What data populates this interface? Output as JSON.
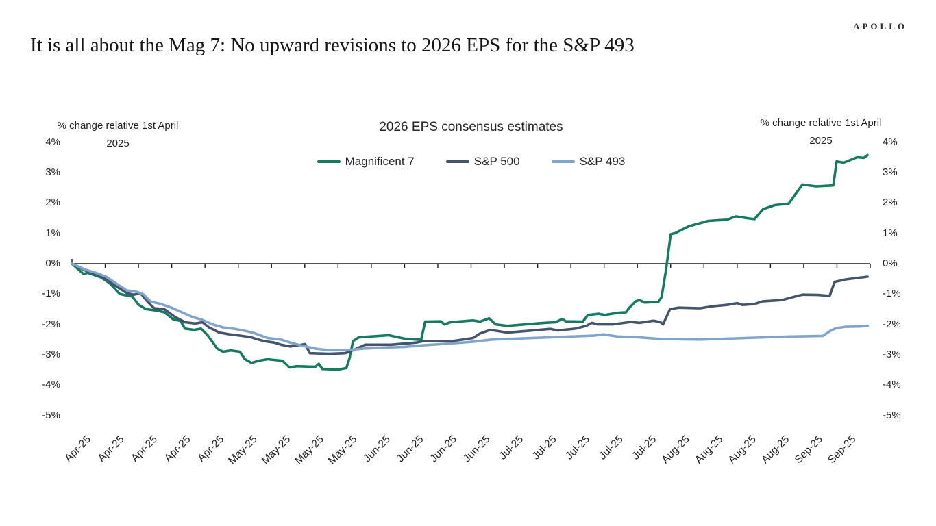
{
  "brand": "APOLLO",
  "title": "It is all about the Mag 7: No upward revisions to 2026 EPS for the S&P 493",
  "chart_data": {
    "type": "line",
    "title": "2026 EPS consensus estimates",
    "axis_label_left": [
      "% change relative 1st April",
      "2025"
    ],
    "axis_label_right": [
      "% change relative 1st April",
      "2025"
    ],
    "ylim": [
      -5,
      4
    ],
    "grid": false,
    "legend_position": "top-center",
    "yticks": [
      {
        "value": 4,
        "label": "4%"
      },
      {
        "value": 3,
        "label": "3%"
      },
      {
        "value": 2,
        "label": "2%"
      },
      {
        "value": 1,
        "label": "1%"
      },
      {
        "value": 0,
        "label": "0%"
      },
      {
        "value": -1,
        "label": "-1%"
      },
      {
        "value": -2,
        "label": "-2%"
      },
      {
        "value": -3,
        "label": "-3%"
      },
      {
        "value": -4,
        "label": "-4%"
      },
      {
        "value": -5,
        "label": "-5%"
      }
    ],
    "x_unit": "weeks since 1 Apr 2025",
    "x_range": [
      0,
      24
    ],
    "categories": [
      "Apr-25",
      "Apr-25",
      "Apr-25",
      "Apr-25",
      "Apr-25",
      "May-25",
      "May-25",
      "May-25",
      "May-25",
      "Jun-25",
      "Jun-25",
      "Jun-25",
      "Jun-25",
      "Jul-25",
      "Jul-25",
      "Jul-25",
      "Jul-25",
      "Jul-25",
      "Aug-25",
      "Aug-25",
      "Aug-25",
      "Aug-25",
      "Sep-25",
      "Sep-25"
    ],
    "series": [
      {
        "name": "Magnificent 7",
        "color": "#147a60",
        "points": [
          [
            0,
            0
          ],
          [
            0.35,
            -0.34
          ],
          [
            0.47,
            -0.3
          ],
          [
            0.87,
            -0.45
          ],
          [
            1.13,
            -0.64
          ],
          [
            1.44,
            -1.0
          ],
          [
            1.65,
            -1.05
          ],
          [
            1.81,
            -1.08
          ],
          [
            2.0,
            -1.35
          ],
          [
            2.23,
            -1.5
          ],
          [
            2.58,
            -1.55
          ],
          [
            2.78,
            -1.6
          ],
          [
            3.05,
            -1.84
          ],
          [
            3.26,
            -1.88
          ],
          [
            3.4,
            -2.14
          ],
          [
            3.67,
            -2.18
          ],
          [
            3.88,
            -2.14
          ],
          [
            4.08,
            -2.36
          ],
          [
            4.37,
            -2.8
          ],
          [
            4.54,
            -2.9
          ],
          [
            4.78,
            -2.86
          ],
          [
            5.05,
            -2.9
          ],
          [
            5.2,
            -3.15
          ],
          [
            5.4,
            -3.27
          ],
          [
            5.61,
            -3.2
          ],
          [
            5.88,
            -3.15
          ],
          [
            6.33,
            -3.2
          ],
          [
            6.54,
            -3.42
          ],
          [
            6.76,
            -3.38
          ],
          [
            7.32,
            -3.4
          ],
          [
            7.42,
            -3.3
          ],
          [
            7.53,
            -3.47
          ],
          [
            8.0,
            -3.49
          ],
          [
            8.25,
            -3.44
          ],
          [
            8.35,
            -3.1
          ],
          [
            8.45,
            -2.55
          ],
          [
            8.62,
            -2.43
          ],
          [
            8.97,
            -2.4
          ],
          [
            9.53,
            -2.36
          ],
          [
            9.69,
            -2.4
          ],
          [
            10.0,
            -2.47
          ],
          [
            10.37,
            -2.5
          ],
          [
            10.5,
            -2.5
          ],
          [
            10.62,
            -1.91
          ],
          [
            11.09,
            -1.9
          ],
          [
            11.2,
            -2.0
          ],
          [
            11.38,
            -1.93
          ],
          [
            11.71,
            -1.9
          ],
          [
            12.06,
            -1.87
          ],
          [
            12.27,
            -1.91
          ],
          [
            12.54,
            -1.8
          ],
          [
            12.74,
            -2.0
          ],
          [
            13.09,
            -2.05
          ],
          [
            13.65,
            -2.0
          ],
          [
            14.19,
            -1.95
          ],
          [
            14.54,
            -1.93
          ],
          [
            14.74,
            -1.82
          ],
          [
            14.85,
            -1.9
          ],
          [
            15.36,
            -1.91
          ],
          [
            15.51,
            -1.69
          ],
          [
            15.84,
            -1.65
          ],
          [
            16.02,
            -1.69
          ],
          [
            16.39,
            -1.62
          ],
          [
            16.66,
            -1.6
          ],
          [
            16.74,
            -1.47
          ],
          [
            16.95,
            -1.24
          ],
          [
            17.07,
            -1.2
          ],
          [
            17.22,
            -1.28
          ],
          [
            17.63,
            -1.26
          ],
          [
            17.73,
            -1.1
          ],
          [
            17.86,
            -0.2
          ],
          [
            18.0,
            0.97
          ],
          [
            18.14,
            1.01
          ],
          [
            18.39,
            1.15
          ],
          [
            18.56,
            1.24
          ],
          [
            18.8,
            1.31
          ],
          [
            19.13,
            1.41
          ],
          [
            19.69,
            1.45
          ],
          [
            19.96,
            1.56
          ],
          [
            20.31,
            1.5
          ],
          [
            20.52,
            1.47
          ],
          [
            20.78,
            1.8
          ],
          [
            21.13,
            1.93
          ],
          [
            21.55,
            1.98
          ],
          [
            21.69,
            2.2
          ],
          [
            21.96,
            2.61
          ],
          [
            22.37,
            2.55
          ],
          [
            22.89,
            2.58
          ],
          [
            22.99,
            3.37
          ],
          [
            23.2,
            3.33
          ],
          [
            23.61,
            3.51
          ],
          [
            23.81,
            3.49
          ],
          [
            23.92,
            3.58
          ]
        ]
      },
      {
        "name": "S&P 500",
        "color": "#44546a",
        "points": [
          [
            0,
            0
          ],
          [
            0.41,
            -0.23
          ],
          [
            0.72,
            -0.34
          ],
          [
            1.03,
            -0.52
          ],
          [
            1.34,
            -0.75
          ],
          [
            1.65,
            -0.97
          ],
          [
            1.86,
            -1.02
          ],
          [
            2.06,
            -0.97
          ],
          [
            2.27,
            -1.25
          ],
          [
            2.47,
            -1.47
          ],
          [
            2.78,
            -1.5
          ],
          [
            3.09,
            -1.75
          ],
          [
            3.4,
            -1.93
          ],
          [
            3.71,
            -1.97
          ],
          [
            3.92,
            -1.93
          ],
          [
            4.12,
            -2.1
          ],
          [
            4.43,
            -2.27
          ],
          [
            4.74,
            -2.33
          ],
          [
            5.05,
            -2.37
          ],
          [
            5.36,
            -2.42
          ],
          [
            5.77,
            -2.55
          ],
          [
            6.08,
            -2.6
          ],
          [
            6.29,
            -2.67
          ],
          [
            6.56,
            -2.73
          ],
          [
            6.76,
            -2.7
          ],
          [
            7.01,
            -2.65
          ],
          [
            7.08,
            -2.8
          ],
          [
            7.15,
            -2.95
          ],
          [
            7.73,
            -2.97
          ],
          [
            8.21,
            -2.95
          ],
          [
            8.35,
            -2.9
          ],
          [
            8.82,
            -2.67
          ],
          [
            9.59,
            -2.67
          ],
          [
            10.35,
            -2.6
          ],
          [
            10.56,
            -2.55
          ],
          [
            11.44,
            -2.55
          ],
          [
            12.06,
            -2.45
          ],
          [
            12.27,
            -2.3
          ],
          [
            12.58,
            -2.18
          ],
          [
            13.09,
            -2.27
          ],
          [
            13.65,
            -2.22
          ],
          [
            14.39,
            -2.15
          ],
          [
            14.6,
            -2.2
          ],
          [
            15.15,
            -2.14
          ],
          [
            15.46,
            -2.05
          ],
          [
            15.63,
            -1.95
          ],
          [
            15.81,
            -2.0
          ],
          [
            16.25,
            -2.0
          ],
          [
            16.8,
            -1.92
          ],
          [
            17.07,
            -1.95
          ],
          [
            17.48,
            -1.88
          ],
          [
            17.69,
            -1.92
          ],
          [
            17.77,
            -2.0
          ],
          [
            17.98,
            -1.5
          ],
          [
            18.25,
            -1.45
          ],
          [
            18.87,
            -1.47
          ],
          [
            19.28,
            -1.4
          ],
          [
            19.69,
            -1.36
          ],
          [
            20.0,
            -1.3
          ],
          [
            20.16,
            -1.36
          ],
          [
            20.52,
            -1.33
          ],
          [
            20.78,
            -1.24
          ],
          [
            21.34,
            -1.2
          ],
          [
            21.75,
            -1.08
          ],
          [
            21.96,
            -1.02
          ],
          [
            22.43,
            -1.03
          ],
          [
            22.78,
            -1.06
          ],
          [
            22.93,
            -0.6
          ],
          [
            23.26,
            -0.52
          ],
          [
            23.61,
            -0.47
          ],
          [
            23.92,
            -0.43
          ]
        ]
      },
      {
        "name": "S&P 493",
        "color": "#7fa5cd",
        "points": [
          [
            0,
            0
          ],
          [
            0.41,
            -0.2
          ],
          [
            0.72,
            -0.3
          ],
          [
            1.03,
            -0.43
          ],
          [
            1.34,
            -0.66
          ],
          [
            1.65,
            -0.88
          ],
          [
            1.96,
            -0.93
          ],
          [
            2.16,
            -1.02
          ],
          [
            2.37,
            -1.25
          ],
          [
            2.68,
            -1.33
          ],
          [
            2.99,
            -1.45
          ],
          [
            3.3,
            -1.6
          ],
          [
            3.61,
            -1.75
          ],
          [
            3.92,
            -1.85
          ],
          [
            4.23,
            -2.0
          ],
          [
            4.54,
            -2.1
          ],
          [
            4.84,
            -2.14
          ],
          [
            5.15,
            -2.2
          ],
          [
            5.46,
            -2.28
          ],
          [
            5.88,
            -2.45
          ],
          [
            6.29,
            -2.5
          ],
          [
            6.56,
            -2.6
          ],
          [
            6.91,
            -2.7
          ],
          [
            7.32,
            -2.8
          ],
          [
            7.73,
            -2.85
          ],
          [
            8.25,
            -2.85
          ],
          [
            8.76,
            -2.8
          ],
          [
            9.32,
            -2.77
          ],
          [
            10.0,
            -2.74
          ],
          [
            10.68,
            -2.68
          ],
          [
            11.38,
            -2.63
          ],
          [
            12.06,
            -2.57
          ],
          [
            12.62,
            -2.5
          ],
          [
            13.09,
            -2.48
          ],
          [
            14.33,
            -2.43
          ],
          [
            15.71,
            -2.37
          ],
          [
            15.98,
            -2.33
          ],
          [
            16.39,
            -2.4
          ],
          [
            17.07,
            -2.43
          ],
          [
            17.69,
            -2.48
          ],
          [
            18.87,
            -2.5
          ],
          [
            20.25,
            -2.45
          ],
          [
            21.61,
            -2.4
          ],
          [
            22.58,
            -2.38
          ],
          [
            22.82,
            -2.2
          ],
          [
            22.99,
            -2.12
          ],
          [
            23.26,
            -2.08
          ],
          [
            23.67,
            -2.07
          ],
          [
            23.92,
            -2.05
          ]
        ]
      }
    ]
  }
}
